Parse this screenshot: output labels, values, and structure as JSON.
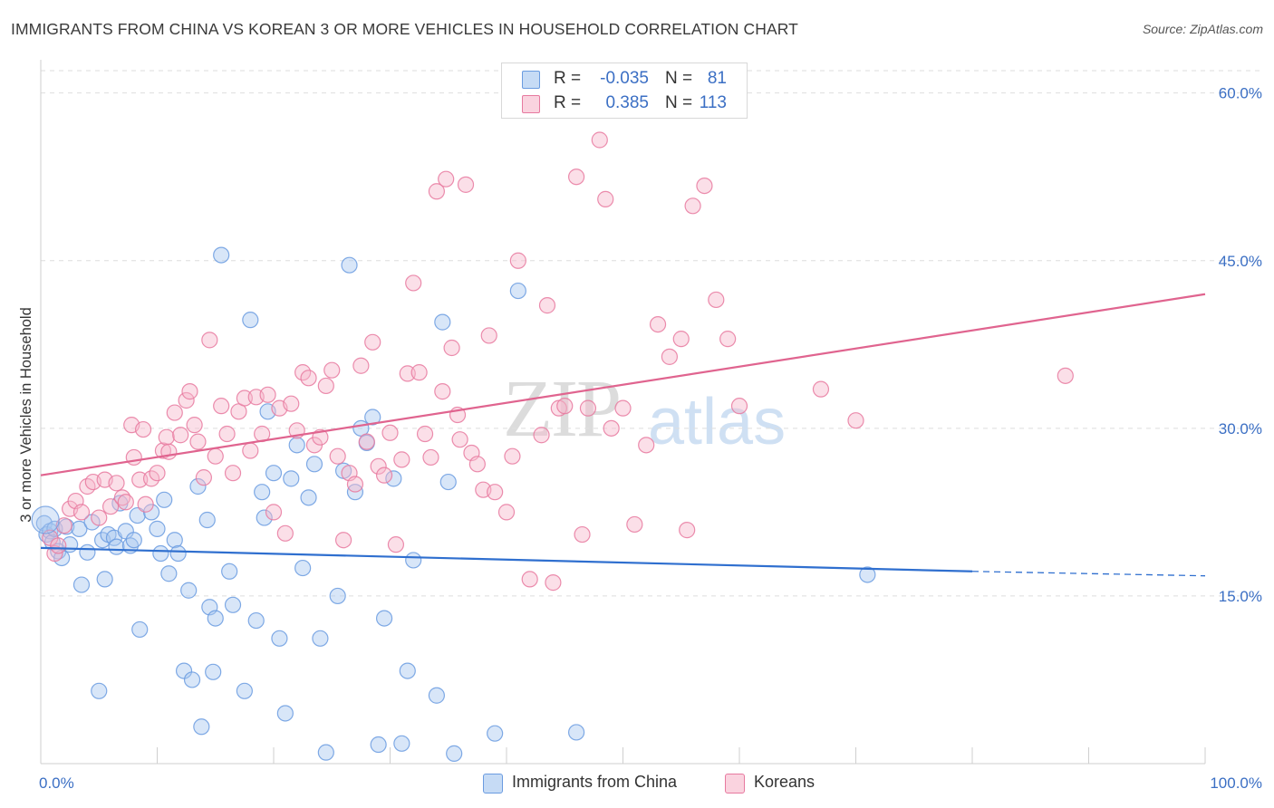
{
  "header": {
    "title": "IMMIGRANTS FROM CHINA VS KOREAN 3 OR MORE VEHICLES IN HOUSEHOLD CORRELATION CHART",
    "source": "Source: ZipAtlas.com"
  },
  "watermark": {
    "part1": "ZIP",
    "part2": "atlas"
  },
  "legend": {
    "rows": [
      {
        "r_label": "R =",
        "r_value": "-0.035",
        "n_label": "N =",
        "n_value": "81",
        "color": "#a9c8f0"
      },
      {
        "r_label": "R =",
        "r_value": "0.385",
        "n_label": "N =",
        "n_value": "113",
        "color": "#f6b8cb"
      }
    ]
  },
  "bottom_legend": {
    "items": [
      {
        "label": "Immigrants from China",
        "color": "#a9c8f0"
      },
      {
        "label": "Koreans",
        "color": "#f6b8cb"
      }
    ]
  },
  "chart_data": {
    "type": "scatter",
    "title": "IMMIGRANTS FROM CHINA VS KOREAN 3 OR MORE VEHICLES IN HOUSEHOLD CORRELATION CHART",
    "ylabel": "3 or more Vehicles in Household",
    "xlabel": "",
    "xlim": [
      0,
      100
    ],
    "ylim": [
      0,
      62
    ],
    "x_tick_labels": [
      "0.0%",
      "100.0%"
    ],
    "y_ticks": [
      15,
      30,
      45,
      60
    ],
    "y_tick_labels": [
      "15.0%",
      "30.0%",
      "45.0%",
      "60.0%"
    ],
    "grid": true,
    "series": [
      {
        "name": "Immigrants from China",
        "color": "#6a9be0",
        "fill": "#a9c8f0",
        "trend": {
          "x_start": 0,
          "y_start": 19.3,
          "x_solid_end": 80,
          "y_solid_end": 17.2,
          "x_end": 100,
          "y_end": 16.8
        },
        "points": [
          [
            0.3,
            21.5
          ],
          [
            0.5,
            20.5
          ],
          [
            0.8,
            20.8
          ],
          [
            1.0,
            19.8
          ],
          [
            1.2,
            21.0
          ],
          [
            1.5,
            19.0
          ],
          [
            1.8,
            18.4
          ],
          [
            2.2,
            21.2
          ],
          [
            2.5,
            19.6
          ],
          [
            3.3,
            21.0
          ],
          [
            3.5,
            16.0
          ],
          [
            4.0,
            18.9
          ],
          [
            4.4,
            21.6
          ],
          [
            5.0,
            6.5
          ],
          [
            5.3,
            20.0
          ],
          [
            5.5,
            16.5
          ],
          [
            5.8,
            20.5
          ],
          [
            6.3,
            20.2
          ],
          [
            6.5,
            19.4
          ],
          [
            6.8,
            23.3
          ],
          [
            7.3,
            20.8
          ],
          [
            7.7,
            19.5
          ],
          [
            8.0,
            20.0
          ],
          [
            8.3,
            22.2
          ],
          [
            8.5,
            12.0
          ],
          [
            9.5,
            22.5
          ],
          [
            10.0,
            21.0
          ],
          [
            10.3,
            18.8
          ],
          [
            10.6,
            23.6
          ],
          [
            11.0,
            17.0
          ],
          [
            11.5,
            20.0
          ],
          [
            11.8,
            18.8
          ],
          [
            12.3,
            8.3
          ],
          [
            12.7,
            15.5
          ],
          [
            13.0,
            7.5
          ],
          [
            13.5,
            24.8
          ],
          [
            13.8,
            3.3
          ],
          [
            14.3,
            21.8
          ],
          [
            14.5,
            14.0
          ],
          [
            14.8,
            8.2
          ],
          [
            15.0,
            13.0
          ],
          [
            15.5,
            45.5
          ],
          [
            16.2,
            17.2
          ],
          [
            16.5,
            14.2
          ],
          [
            17.5,
            6.5
          ],
          [
            18.0,
            39.7
          ],
          [
            18.5,
            12.8
          ],
          [
            19.0,
            24.3
          ],
          [
            19.2,
            22.0
          ],
          [
            19.5,
            31.5
          ],
          [
            20.0,
            26.0
          ],
          [
            20.5,
            11.2
          ],
          [
            21.0,
            4.5
          ],
          [
            21.5,
            25.5
          ],
          [
            22.0,
            28.5
          ],
          [
            22.5,
            17.5
          ],
          [
            23.0,
            23.8
          ],
          [
            23.5,
            26.8
          ],
          [
            24.0,
            11.2
          ],
          [
            24.5,
            1.0
          ],
          [
            25.5,
            15.0
          ],
          [
            26.0,
            26.2
          ],
          [
            26.5,
            44.6
          ],
          [
            27.0,
            24.3
          ],
          [
            27.5,
            30.0
          ],
          [
            28.0,
            28.7
          ],
          [
            28.5,
            31.0
          ],
          [
            29.0,
            1.7
          ],
          [
            29.5,
            13.0
          ],
          [
            30.3,
            25.5
          ],
          [
            31.0,
            1.8
          ],
          [
            31.5,
            8.3
          ],
          [
            32.0,
            18.2
          ],
          [
            34.0,
            6.1
          ],
          [
            34.5,
            39.5
          ],
          [
            35.0,
            25.2
          ],
          [
            35.5,
            0.9
          ],
          [
            39.0,
            2.7
          ],
          [
            41.0,
            42.3
          ],
          [
            46.0,
            2.8
          ],
          [
            71.0,
            16.9
          ]
        ]
      },
      {
        "name": "Koreans",
        "color": "#e7799f",
        "fill": "#f6b8cb",
        "trend": {
          "x_start": 0,
          "y_start": 25.8,
          "x_end": 100,
          "y_end": 42.0
        },
        "points": [
          [
            0.8,
            20.2
          ],
          [
            1.2,
            18.8
          ],
          [
            1.5,
            19.5
          ],
          [
            2.0,
            21.3
          ],
          [
            2.5,
            22.8
          ],
          [
            3.0,
            23.5
          ],
          [
            3.5,
            22.5
          ],
          [
            4.0,
            24.8
          ],
          [
            4.5,
            25.2
          ],
          [
            5.0,
            22.0
          ],
          [
            5.5,
            25.4
          ],
          [
            6.0,
            23.0
          ],
          [
            6.5,
            25.1
          ],
          [
            7.0,
            23.8
          ],
          [
            7.3,
            23.4
          ],
          [
            7.8,
            30.3
          ],
          [
            8.0,
            27.4
          ],
          [
            8.5,
            25.4
          ],
          [
            8.8,
            29.9
          ],
          [
            9.0,
            23.2
          ],
          [
            9.5,
            25.5
          ],
          [
            10.0,
            26.0
          ],
          [
            10.5,
            28.0
          ],
          [
            10.8,
            29.2
          ],
          [
            11.0,
            27.9
          ],
          [
            11.5,
            31.4
          ],
          [
            12.0,
            29.4
          ],
          [
            12.5,
            32.5
          ],
          [
            12.8,
            33.3
          ],
          [
            13.2,
            30.3
          ],
          [
            13.5,
            28.8
          ],
          [
            14.0,
            25.6
          ],
          [
            14.5,
            37.9
          ],
          [
            15.0,
            27.5
          ],
          [
            15.5,
            32.0
          ],
          [
            16.0,
            29.5
          ],
          [
            16.5,
            26.0
          ],
          [
            17.0,
            31.5
          ],
          [
            17.5,
            32.7
          ],
          [
            18.0,
            28.0
          ],
          [
            18.5,
            32.8
          ],
          [
            19.0,
            29.5
          ],
          [
            19.5,
            33.0
          ],
          [
            20.0,
            22.5
          ],
          [
            20.5,
            31.8
          ],
          [
            21.0,
            20.6
          ],
          [
            21.5,
            32.2
          ],
          [
            22.0,
            29.8
          ],
          [
            22.5,
            35.0
          ],
          [
            23.0,
            34.5
          ],
          [
            23.5,
            28.5
          ],
          [
            24.0,
            29.2
          ],
          [
            24.5,
            33.8
          ],
          [
            25.0,
            35.2
          ],
          [
            25.5,
            27.5
          ],
          [
            26.0,
            20.0
          ],
          [
            26.5,
            26.0
          ],
          [
            27.0,
            25.0
          ],
          [
            27.5,
            35.6
          ],
          [
            28.0,
            28.8
          ],
          [
            28.5,
            37.7
          ],
          [
            29.0,
            26.6
          ],
          [
            29.5,
            25.8
          ],
          [
            30.0,
            29.6
          ],
          [
            30.5,
            19.6
          ],
          [
            31.0,
            27.2
          ],
          [
            31.5,
            34.9
          ],
          [
            32.0,
            43.0
          ],
          [
            32.5,
            35.0
          ],
          [
            33.0,
            29.5
          ],
          [
            33.5,
            27.4
          ],
          [
            34.0,
            51.2
          ],
          [
            34.5,
            33.3
          ],
          [
            34.8,
            52.3
          ],
          [
            35.3,
            37.2
          ],
          [
            35.8,
            31.2
          ],
          [
            36.0,
            29.0
          ],
          [
            36.5,
            51.8
          ],
          [
            37.0,
            27.8
          ],
          [
            37.5,
            26.8
          ],
          [
            38.0,
            24.5
          ],
          [
            38.5,
            38.3
          ],
          [
            39.0,
            24.3
          ],
          [
            40.0,
            22.5
          ],
          [
            40.5,
            27.5
          ],
          [
            41.0,
            45.0
          ],
          [
            42.0,
            16.5
          ],
          [
            43.0,
            29.4
          ],
          [
            43.5,
            41.0
          ],
          [
            44.0,
            16.2
          ],
          [
            44.5,
            31.8
          ],
          [
            45.0,
            32.0
          ],
          [
            46.0,
            52.5
          ],
          [
            46.5,
            20.5
          ],
          [
            47.0,
            31.8
          ],
          [
            48.0,
            55.8
          ],
          [
            48.5,
            50.5
          ],
          [
            49.0,
            30.0
          ],
          [
            50.0,
            31.8
          ],
          [
            51.0,
            21.4
          ],
          [
            52.0,
            28.5
          ],
          [
            53.0,
            39.3
          ],
          [
            54.0,
            36.4
          ],
          [
            55.0,
            38.0
          ],
          [
            55.5,
            20.9
          ],
          [
            56.0,
            49.9
          ],
          [
            57.0,
            51.7
          ],
          [
            58.0,
            41.5
          ],
          [
            59.0,
            38.0
          ],
          [
            60.0,
            32.0
          ],
          [
            67.0,
            33.5
          ],
          [
            70.0,
            30.7
          ],
          [
            88.0,
            34.7
          ]
        ]
      }
    ]
  }
}
